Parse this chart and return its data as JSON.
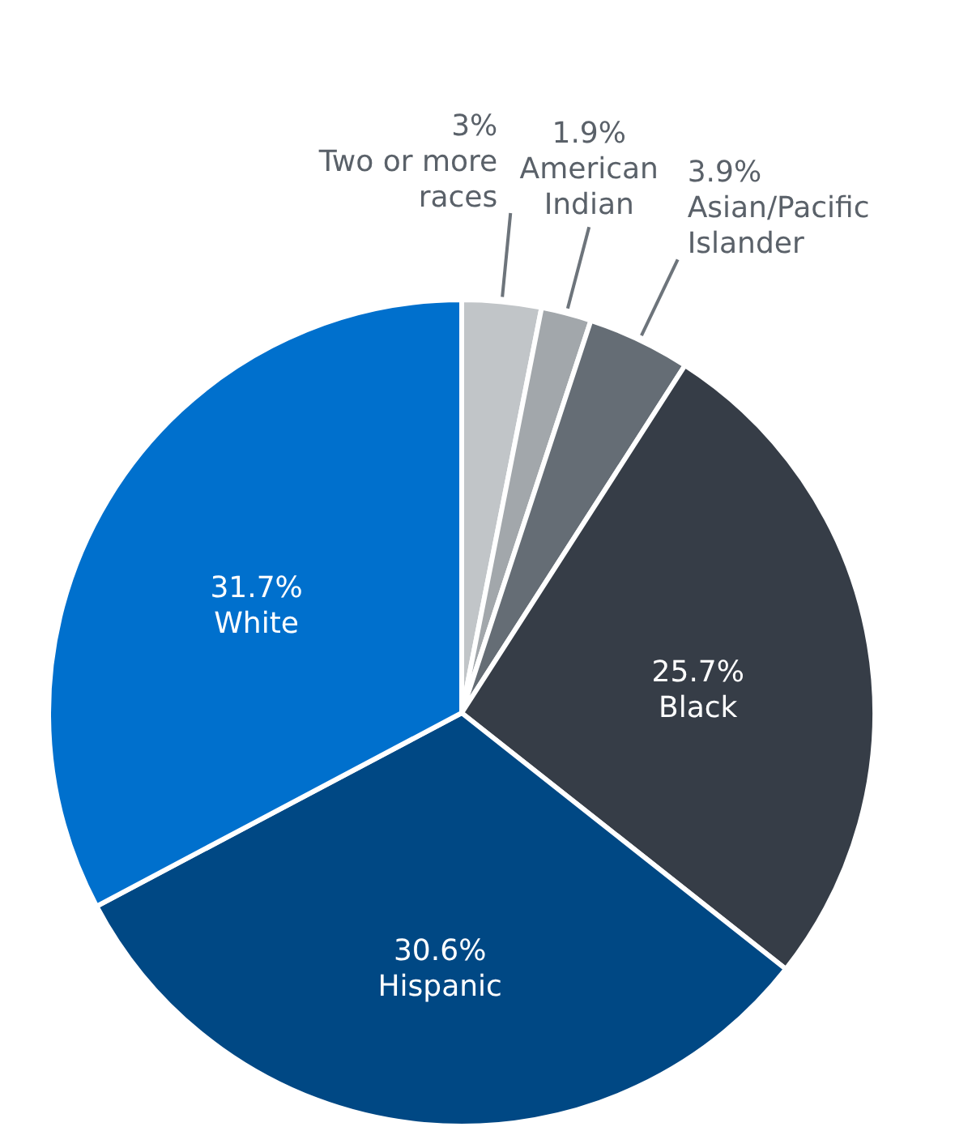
{
  "chart_data": {
    "type": "pie",
    "categories": [
      "Two or more races",
      "American Indian",
      "Asian/Pacific Islander",
      "Black",
      "Hispanic",
      "White"
    ],
    "values": [
      3,
      1.9,
      3.9,
      25.7,
      30.6,
      31.7
    ],
    "value_labels": [
      "3%",
      "1.9%",
      "3.9%",
      "25.7%",
      "30.6%",
      "31.7%"
    ],
    "colors": [
      "#c1c5c8",
      "#a2a7ab",
      "#656d75",
      "#363d47",
      "#004884",
      "#0070cd"
    ]
  }
}
